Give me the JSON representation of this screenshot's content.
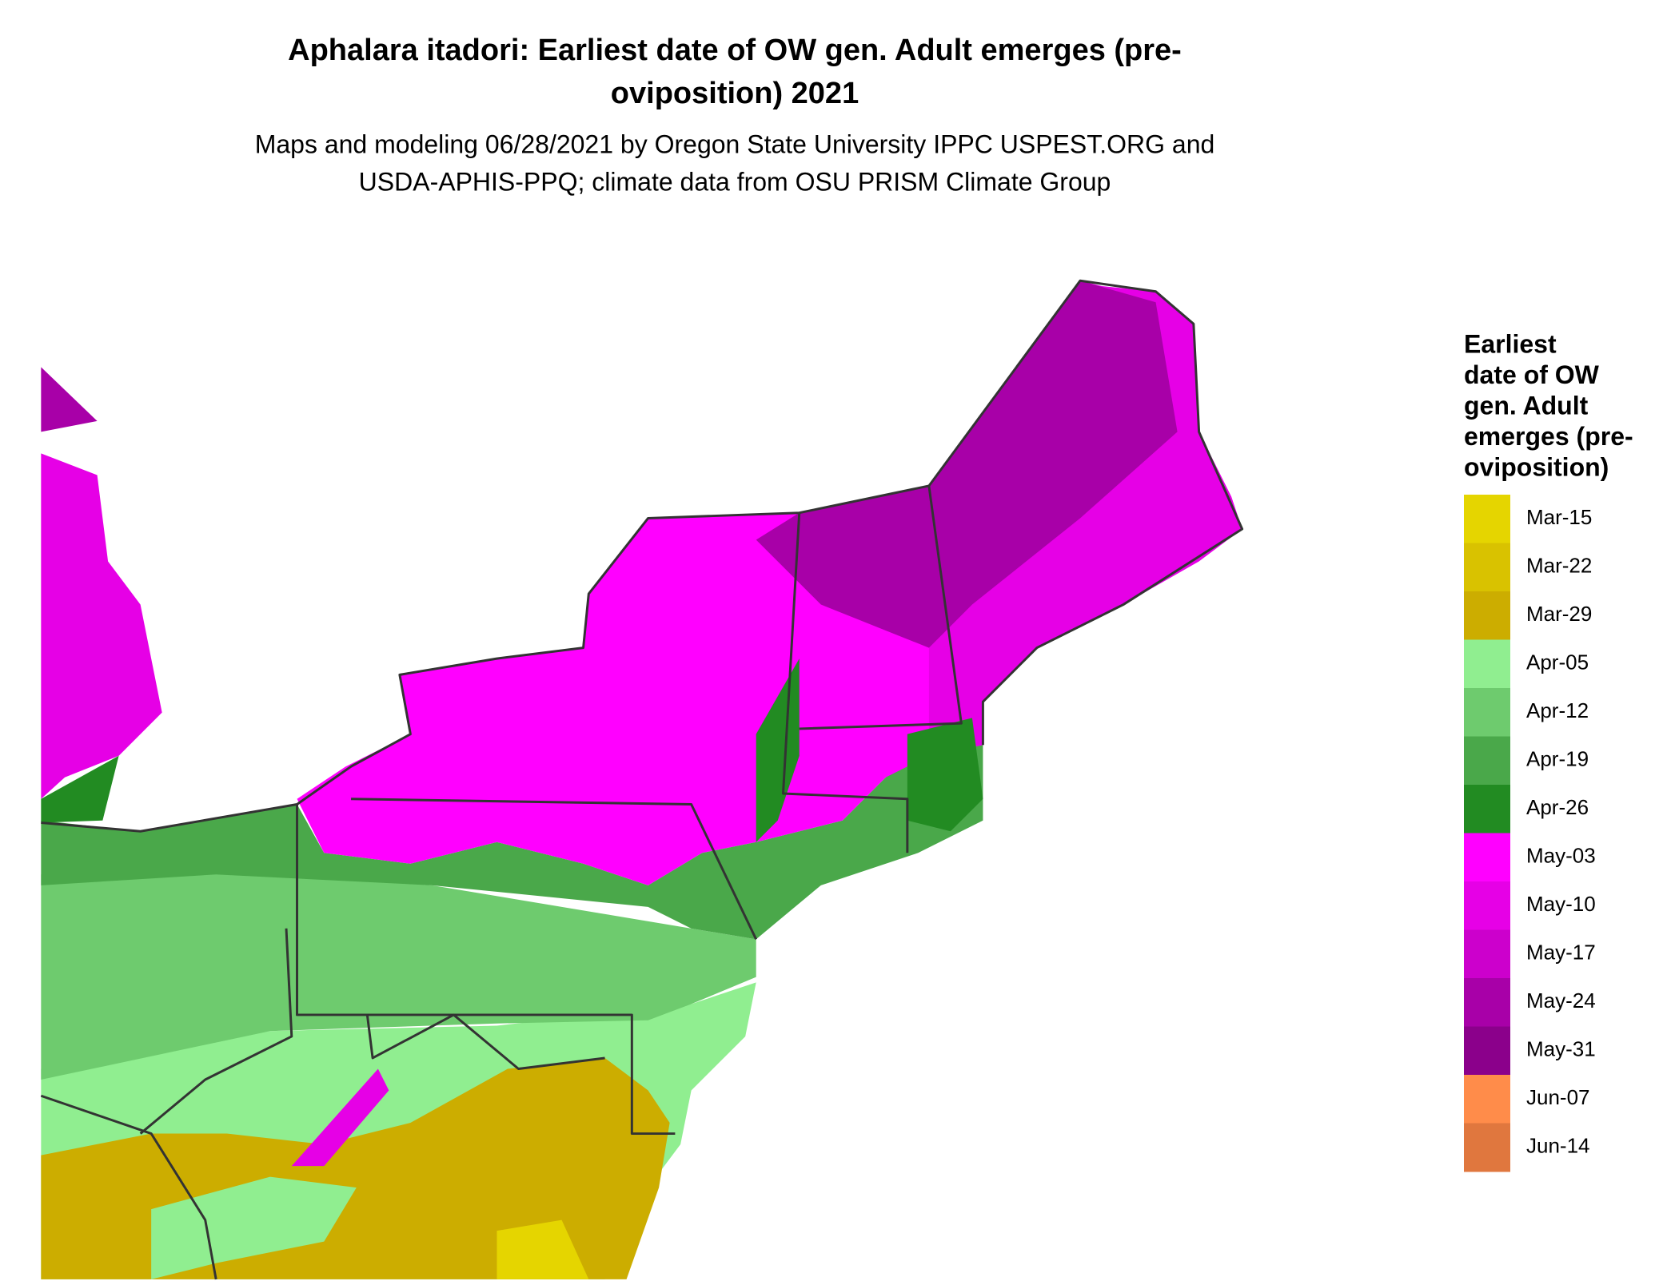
{
  "title_lines": [
    "Aphalara itadori: Earliest date of OW gen. Adult emerges (pre-",
    "oviposition) 2021"
  ],
  "subtitle_lines": [
    "Maps and modeling 06/28/2021 by Oregon State University IPPC USPEST.ORG and",
    "USDA-APHIS-PPQ; climate data from OSU PRISM Climate Group"
  ],
  "legend": {
    "title_lines": [
      "Earliest",
      "date of OW",
      "gen. Adult",
      "emerges (pre-",
      "oviposition)"
    ],
    "items": [
      {
        "label": "Mar-15",
        "color": "#e5d500"
      },
      {
        "label": "Mar-22",
        "color": "#d9c200"
      },
      {
        "label": "Mar-29",
        "color": "#ccad00"
      },
      {
        "label": "Apr-05",
        "color": "#90ee90"
      },
      {
        "label": "Apr-12",
        "color": "#6ecb6e"
      },
      {
        "label": "Apr-19",
        "color": "#4aa84a"
      },
      {
        "label": "Apr-26",
        "color": "#228b22"
      },
      {
        "label": "May-03",
        "color": "#ff00ff"
      },
      {
        "label": "May-10",
        "color": "#e600e6"
      },
      {
        "label": "May-17",
        "color": "#cc00cc"
      },
      {
        "label": "May-24",
        "color": "#a800a8"
      },
      {
        "label": "May-31",
        "color": "#8b008b"
      },
      {
        "label": "Jun-07",
        "color": "#ff8c4a"
      },
      {
        "label": "Jun-14",
        "color": "#e0773e"
      }
    ]
  }
}
